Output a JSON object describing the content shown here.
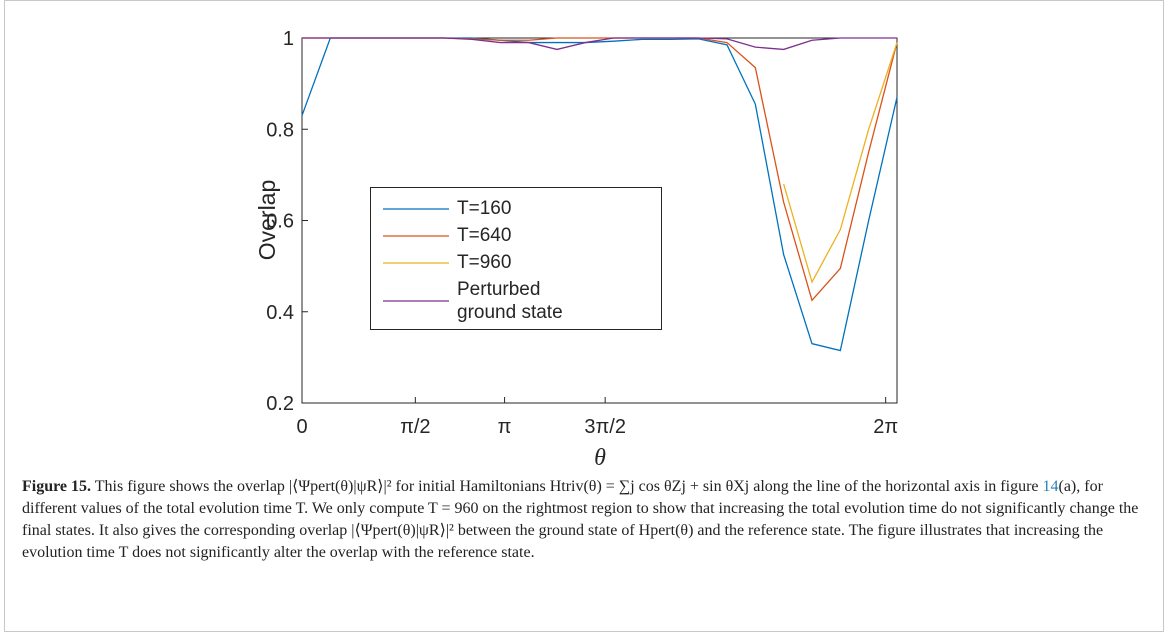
{
  "chart_data": {
    "type": "line",
    "x": [
      0,
      1,
      2,
      3,
      4,
      5,
      6,
      7,
      8,
      9,
      10,
      11,
      12,
      13,
      14,
      15,
      16,
      17,
      18,
      19,
      20,
      21
    ],
    "xlim": [
      0,
      21
    ],
    "xticks": [
      {
        "value": 0,
        "label": "0"
      },
      {
        "value": 4,
        "label": "π/2"
      },
      {
        "value": 7.15,
        "label": "π"
      },
      {
        "value": 10.7,
        "label": "3π/2"
      },
      {
        "value": 20.6,
        "label": "2π"
      }
    ],
    "ylim": [
      0.2,
      1
    ],
    "yticks": [
      0.2,
      0.4,
      0.6,
      0.8,
      1
    ],
    "xlabel": "θ",
    "ylabel": "Overlap",
    "series": [
      {
        "name": "T=160",
        "color": "#0072bd",
        "values": [
          0.83,
          1,
          1,
          1,
          1,
          1,
          1,
          0.995,
          0.99,
          0.99,
          0.99,
          0.993,
          0.997,
          0.997,
          0.998,
          0.985,
          0.855,
          0.525,
          0.33,
          0.315,
          0.6,
          0.87
        ]
      },
      {
        "name": "T=640",
        "color": "#d95319",
        "values": [
          1,
          1,
          1,
          1,
          1,
          1,
          0.998,
          0.995,
          0.995,
          1,
          1,
          1,
          1,
          1,
          1,
          0.99,
          0.935,
          0.64,
          0.425,
          0.495,
          0.75,
          0.99
        ]
      },
      {
        "name": "T=960",
        "color": "#edb120",
        "values": [
          null,
          null,
          null,
          null,
          null,
          null,
          null,
          null,
          null,
          null,
          null,
          null,
          null,
          null,
          null,
          null,
          null,
          0.68,
          0.465,
          0.58,
          0.8,
          0.99
        ]
      },
      {
        "name": "Perturbed ground state",
        "color": "#7e2f8e",
        "values": [
          1,
          1,
          1,
          1,
          1,
          1,
          0.997,
          0.99,
          0.99,
          0.975,
          0.99,
          1,
          1,
          1,
          1,
          0.998,
          0.98,
          0.975,
          0.995,
          1,
          1,
          1
        ]
      }
    ]
  },
  "caption": {
    "label": "Figure 15.",
    "parts": [
      "This figure shows the overlap |⟨Ψpert(θ)|ψR⟩|² for initial Hamiltonians Htriv(θ) = ∑j cos θZj + sin θXj along the line of the horizontal axis in figure ",
      "14",
      "(a), for different values of the total evolution time T. We only compute T = 960 on the rightmost region to show that increasing the total evolution time do not significantly change the final states. It also gives the corresponding overlap |⟨Ψpert(θ)|ψR⟩|² between the ground state of Hpert(θ) and the reference state. The figure illustrates that increasing the evolution time T does not significantly alter the overlap with the reference state."
    ]
  }
}
